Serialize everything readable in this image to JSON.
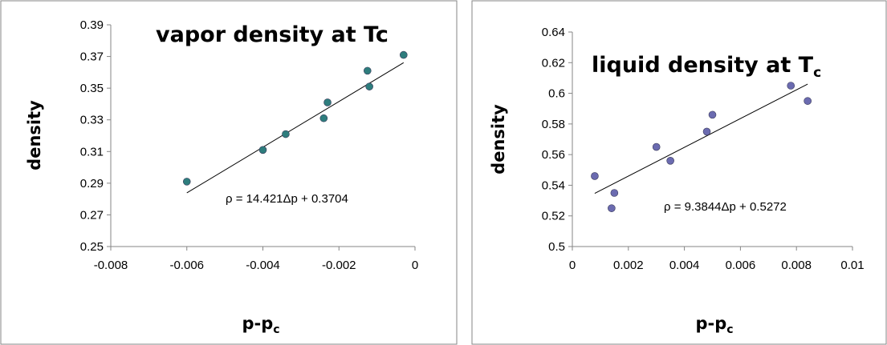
{
  "chart_data": [
    {
      "type": "scatter",
      "title": "vapor density at Tc",
      "xlabel_main": "p-p",
      "xlabel_sub": "c",
      "ylabel": "density",
      "xlim": [
        -0.008,
        0
      ],
      "ylim": [
        0.25,
        0.39
      ],
      "xticks": [
        "-0.008",
        "-0.006",
        "-0.004",
        "-0.002",
        "0"
      ],
      "yticks": [
        "0.25",
        "0.27",
        "0.29",
        "0.31",
        "0.33",
        "0.35",
        "0.37",
        "0.39"
      ],
      "points": [
        [
          -0.006,
          0.291
        ],
        [
          -0.004,
          0.311
        ],
        [
          -0.0034,
          0.321
        ],
        [
          -0.0024,
          0.331
        ],
        [
          -0.0023,
          0.341
        ],
        [
          -0.0012,
          0.351
        ],
        [
          -0.00125,
          0.361
        ],
        [
          -0.0003,
          0.371
        ]
      ],
      "trendline": {
        "slope": 14.421,
        "intercept": 0.3704,
        "x_range": [
          -0.006,
          -0.0003
        ]
      },
      "equation": "ρ = 14.421Δp + 0.3704",
      "grid": false,
      "marker_color": "#2e7d7d"
    },
    {
      "type": "scatter",
      "title_main": "liquid density at T",
      "title_sub": "c",
      "xlabel_main": "p-p",
      "xlabel_sub": "c",
      "ylabel": "density",
      "xlim": [
        0,
        0.01
      ],
      "ylim": [
        0.5,
        0.64
      ],
      "xticks": [
        "0",
        "0.002",
        "0.004",
        "0.006",
        "0.008",
        "0.01"
      ],
      "yticks": [
        "0.5",
        "0.52",
        "0.54",
        "0.56",
        "0.58",
        "0.6",
        "0.62",
        "0.64"
      ],
      "points": [
        [
          0.0008,
          0.546
        ],
        [
          0.0014,
          0.525
        ],
        [
          0.0015,
          0.535
        ],
        [
          0.003,
          0.565
        ],
        [
          0.0035,
          0.556
        ],
        [
          0.0048,
          0.575
        ],
        [
          0.005,
          0.586
        ],
        [
          0.0078,
          0.605
        ],
        [
          0.0084,
          0.595
        ]
      ],
      "trendline": {
        "slope": 9.3844,
        "intercept": 0.5272,
        "x_range": [
          0.0008,
          0.0084
        ]
      },
      "equation": "ρ = 9.3844Δp + 0.5272",
      "grid": false,
      "marker_color": "#6b6bb0"
    }
  ]
}
